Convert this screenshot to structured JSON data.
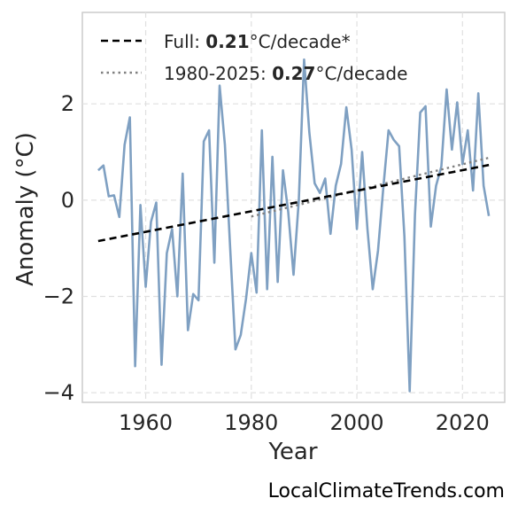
{
  "chart_data": {
    "type": "line",
    "xlabel": "Year",
    "ylabel": "Anomaly (°C)",
    "xlim": [
      1948,
      2028
    ],
    "ylim": [
      -4.2,
      3.9
    ],
    "xticks": [
      1960,
      1980,
      2000,
      2020
    ],
    "yticks": [
      -4,
      -2,
      0,
      2
    ],
    "ytick_labels": [
      "−4",
      "−2",
      "0",
      "2"
    ],
    "grid": true,
    "legend_position": "top-left",
    "series": [
      {
        "x": [
          1951,
          1952,
          1953,
          1954,
          1955,
          1956,
          1957,
          1958,
          1959,
          1960,
          1961,
          1962,
          1963,
          1964,
          1965,
          1966,
          1967,
          1968,
          1969,
          1970,
          1971,
          1972,
          1973,
          1974,
          1975,
          1976,
          1977,
          1978,
          1979,
          1980,
          1981,
          1982,
          1983,
          1984,
          1985,
          1986,
          1987,
          1988,
          1989,
          1990,
          1991,
          1992,
          1993,
          1994,
          1995,
          1996,
          1997,
          1998,
          1999,
          2000,
          2001,
          2002,
          2003,
          2004,
          2005,
          2006,
          2007,
          2008,
          2009,
          2010,
          2011,
          2012,
          2013,
          2014,
          2015,
          2016,
          2017,
          2018,
          2019,
          2020,
          2021,
          2022,
          2023,
          2024,
          2025
        ],
        "values": [
          0.62,
          0.72,
          0.08,
          0.1,
          -0.35,
          1.15,
          1.72,
          -3.45,
          -0.1,
          -1.8,
          -0.45,
          -0.05,
          -3.42,
          -1.1,
          -0.6,
          -2.0,
          0.55,
          -2.7,
          -1.95,
          -2.08,
          1.22,
          1.45,
          -1.3,
          2.38,
          1.15,
          -1.0,
          -3.1,
          -2.8,
          -2.05,
          -1.1,
          -1.92,
          1.45,
          -1.85,
          0.9,
          -1.7,
          0.62,
          -0.25,
          -1.55,
          0.0,
          2.92,
          1.4,
          0.35,
          0.15,
          0.45,
          -0.7,
          0.3,
          0.75,
          1.93,
          1.05,
          -0.6,
          1.0,
          -0.6,
          -1.85,
          -1.05,
          0.25,
          1.45,
          1.25,
          1.12,
          -0.75,
          -3.97,
          -0.3,
          1.82,
          1.95,
          -0.55,
          0.3,
          0.7,
          2.3,
          1.05,
          2.03,
          0.75,
          1.45,
          0.2,
          2.22,
          0.3,
          -0.33
        ],
        "color": "#7fa0c2"
      },
      {
        "name": "Full: 0.21°C/decade*",
        "type": "trend",
        "style": "dashed",
        "color": "#000000",
        "x": [
          1951,
          2025
        ],
        "values": [
          -0.85,
          0.73
        ]
      },
      {
        "name": "1980-2025: 0.27°C/decade",
        "type": "trend",
        "style": "dotted",
        "color": "#808080",
        "x": [
          1980,
          2025
        ],
        "values": [
          -0.34,
          0.88
        ]
      }
    ],
    "legend": [
      {
        "prefix": "Full: ",
        "bold": "0.21",
        "suffix": "°C/decade*"
      },
      {
        "prefix": "1980-2025: ",
        "bold": "0.27",
        "suffix": "°C/decade"
      }
    ]
  },
  "watermark": "LocalClimateTrends.com"
}
